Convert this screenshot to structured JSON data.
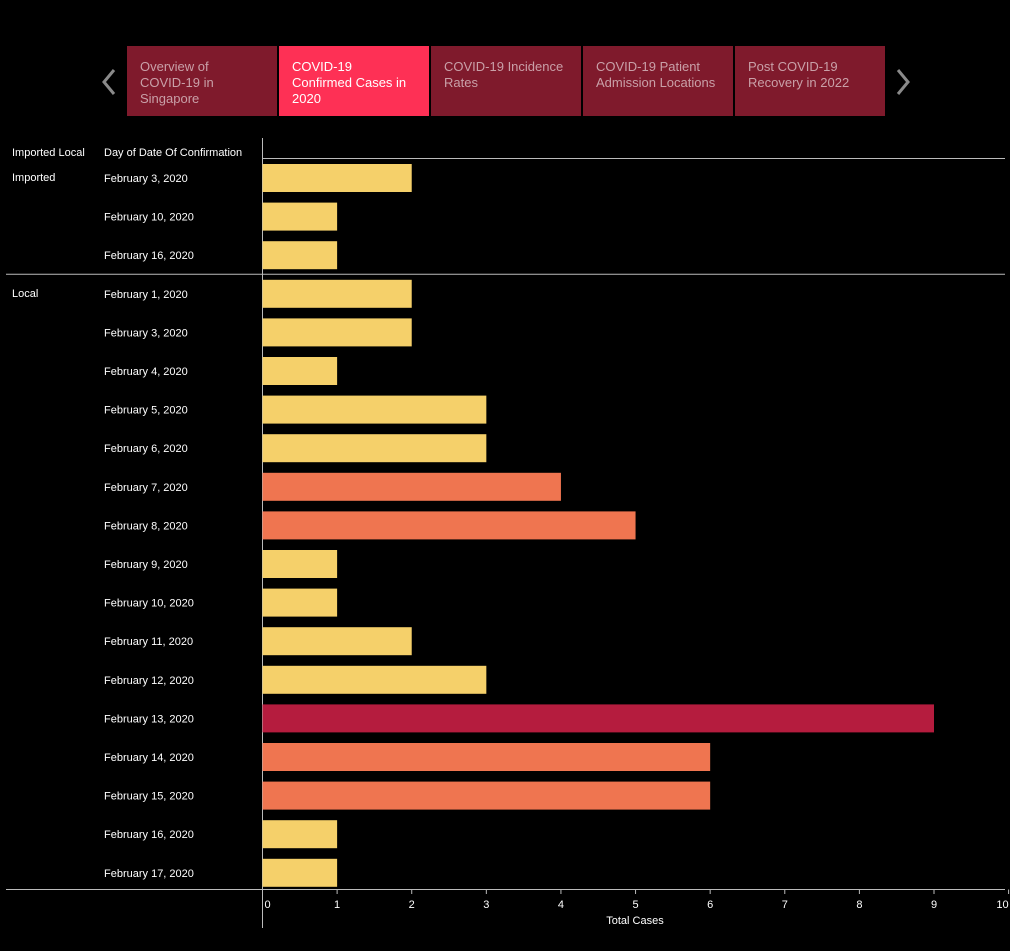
{
  "tabs": {
    "items": [
      {
        "label": "Overview of COVID-19 in Singapore",
        "lines": [
          "Overview of",
          "COVID-19 in",
          "Singapore"
        ],
        "active": false
      },
      {
        "label": "COVID-19 Confirmed Cases in 2020",
        "lines": [
          "COVID-19",
          "Confirmed Cases in",
          "2020"
        ],
        "active": true
      },
      {
        "label": "COVID-19 Incidence Rates",
        "lines": [
          "COVID-19 Incidence",
          "Rates"
        ],
        "active": false
      },
      {
        "label": "COVID-19 Patient Admission Locations",
        "lines": [
          "COVID-19 Patient",
          "Admission Locations"
        ],
        "active": false
      },
      {
        "label": "Post COVID-19 Recovery in 2022",
        "lines": [
          "Post COVID-19",
          "Recovery in 2022"
        ],
        "active": false
      }
    ],
    "prev_icon": "chevron-left-icon",
    "next_icon": "chevron-right-icon"
  },
  "chart_data": {
    "type": "bar",
    "orientation": "horizontal",
    "row_headers": [
      "Imported Local",
      "Day of Date Of Confirmation"
    ],
    "xlabel": "Total Cases",
    "xlim": [
      0,
      10
    ],
    "x_ticks": [
      0,
      1,
      2,
      3,
      4,
      5,
      6,
      7,
      8,
      9,
      10
    ],
    "groups": [
      {
        "name": "Imported",
        "categories": [
          "February 3, 2020",
          "February 10, 2020",
          "February 16, 2020"
        ],
        "values": [
          2,
          1,
          1
        ]
      },
      {
        "name": "Local",
        "categories": [
          "February 1, 2020",
          "February 3, 2020",
          "February 4, 2020",
          "February 5, 2020",
          "February 6, 2020",
          "February 7, 2020",
          "February 8, 2020",
          "February 9, 2020",
          "February 10, 2020",
          "February 11, 2020",
          "February 12, 2020",
          "February 13, 2020",
          "February 14, 2020",
          "February 15, 2020",
          "February 16, 2020",
          "February 17, 2020"
        ],
        "values": [
          2,
          2,
          1,
          3,
          3,
          4,
          5,
          1,
          1,
          2,
          3,
          9,
          6,
          6,
          1,
          1
        ]
      }
    ],
    "colors": {
      "low": "#f5d06a",
      "mid": "#ef7550",
      "high": "#b51c3e",
      "axis": "#bbbbbb",
      "tab": "#7f1a2c",
      "tab_active": "#fe3055"
    },
    "grid": false
  }
}
